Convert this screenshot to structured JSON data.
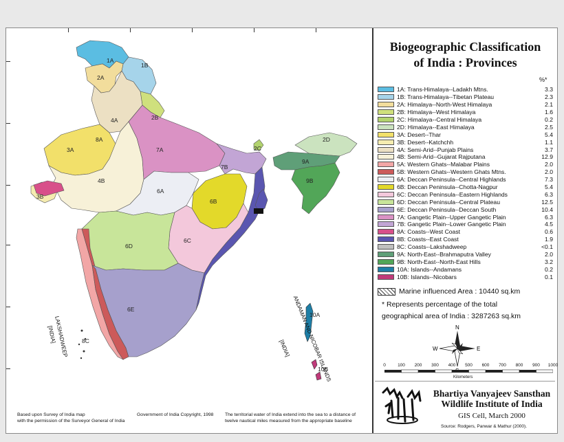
{
  "title": "Biogeographic Classification of India : Provinces",
  "title_lines": [
    "Biogeographic Classification",
    "of India : Provinces"
  ],
  "percent_header": "%*",
  "legend": [
    {
      "code": "1A",
      "label": "1A: Trans-Himalaya--Ladakh Mtns.",
      "value": "3.3",
      "color": "#5bbde2"
    },
    {
      "code": "1B",
      "label": "1B: Trans-Himalaya--Tibetan Plateau",
      "value": "2.3",
      "color": "#a6d4ea"
    },
    {
      "code": "2A",
      "label": "2A: Himalaya--North-West Himalaya",
      "value": "2.1",
      "color": "#f2dd9c"
    },
    {
      "code": "2B",
      "label": "2B: Himalaya--West Himalaya",
      "value": "1.6",
      "color": "#cfe07d"
    },
    {
      "code": "2C",
      "label": "2C: Himalaya--Central Himalaya",
      "value": "0.2",
      "color": "#b2d36e"
    },
    {
      "code": "2D",
      "label": "2D: Himalaya--East Himalaya",
      "value": "2.5",
      "color": "#cbe3bf"
    },
    {
      "code": "3A",
      "label": "3A: Desert--Thar",
      "value": "5.4",
      "color": "#f2e06a"
    },
    {
      "code": "3B",
      "label": "3B: Desert--Katchchh",
      "value": "1.1",
      "color": "#f5ecb0"
    },
    {
      "code": "4A",
      "label": "4A: Semi-Arid--Punjab Plains",
      "value": "3.7",
      "color": "#ece0c3"
    },
    {
      "code": "4B",
      "label": "4B: Semi-Arid--Gujarat Rajputana",
      "value": "12.9",
      "color": "#f7f1d8"
    },
    {
      "code": "5A",
      "label": "5A: Western Ghats--Malabar Plains",
      "value": "2.0",
      "color": "#f2a6a6"
    },
    {
      "code": "5B",
      "label": "5B: Western Ghats--Western Ghats Mtns.",
      "value": "2.0",
      "color": "#cc5a5a"
    },
    {
      "code": "6A",
      "label": "6A: Deccan Peninsula--Central Highlands",
      "value": "7.3",
      "color": "#eceef4"
    },
    {
      "code": "6B",
      "label": "6B: Deccan Peninsula--Chotta-Nagpur",
      "value": "5.4",
      "color": "#e3d92a"
    },
    {
      "code": "6C",
      "label": "6C: Deccan Peninsula--Eastern Highlands",
      "value": "6.3",
      "color": "#f3c8db"
    },
    {
      "code": "6D",
      "label": "6D: Deccan Peninsula--Central Plateau",
      "value": "12.5",
      "color": "#c8e59a"
    },
    {
      "code": "6E",
      "label": "6E: Deccan Peninsula--Deccan South",
      "value": "10.4",
      "color": "#a6a0cc"
    },
    {
      "code": "7A",
      "label": "7A: Gangetic Plain--Upper Gangetic Plain",
      "value": "6.3",
      "color": "#da92c4"
    },
    {
      "code": "7B",
      "label": "7B: Gangetic Plain--Lower Gangetic Plain",
      "value": "4.5",
      "color": "#c2a5d5"
    },
    {
      "code": "8A",
      "label": "8A: Coasts--West Coast",
      "value": "0.6",
      "color": "#d8508a"
    },
    {
      "code": "8B",
      "label": "8B: Coasts--East Coast",
      "value": "1.9",
      "color": "#5a56b0"
    },
    {
      "code": "8C",
      "label": "8C: Coasts--Lakshadweep",
      "value": "<0.1",
      "color": "#c0c0c0"
    },
    {
      "code": "9A",
      "label": "9A: North-East--Brahmaputra Valley",
      "value": "2.0",
      "color": "#5f9f78"
    },
    {
      "code": "9B",
      "label": "9B: North-East--North-East Hills",
      "value": "3.2",
      "color": "#52a658"
    },
    {
      "code": "10A",
      "label": "10A: Islands--Andamans",
      "value": "0.2",
      "color": "#1e7ea6"
    },
    {
      "code": "10B",
      "label": "10B: Islands--Nicobars",
      "value": "0.1",
      "color": "#c03a7a"
    }
  ],
  "marine_text": "Marine influenced Area : 10440 sq.km",
  "note_lines": [
    "* Represents percentage of the total",
    "geographical area of India : 3287263 sq.km"
  ],
  "compass": {
    "n": "N",
    "s": "S",
    "e": "E",
    "w": "W"
  },
  "scale": {
    "ticks": [
      "0",
      "100",
      "200",
      "300",
      "400",
      "500",
      "600",
      "700",
      "800",
      "900",
      "1000"
    ],
    "unit": "Kilometers"
  },
  "institute": {
    "name_lines": [
      "Bhartiya Vanyajeev Sansthan",
      "Wildlife Institute of India"
    ],
    "cell": "GIS Cell, March 2000",
    "source": "Source: Rodgers, Panwar & Mathur (2000)."
  },
  "footer": {
    "left": [
      "Based upon Survey of India map",
      "with the permission of the Surveyor General of India"
    ],
    "mid": "Government of India Copyright, 1998",
    "right": [
      "The territorial water of India extend into the sea to a distance of",
      "twelve nautical miles measured from the appropriate baseline"
    ]
  },
  "map_labels": {
    "lakshadweep": "LAKSHADWEEP",
    "lakshadweep_sub": "[INDIA]",
    "andaman": "ANDAMAN AND NICOBAR ISLANDS",
    "andaman_sub": "[INDIA]"
  },
  "regions": [
    "1A",
    "1B",
    "2A",
    "2B",
    "2C",
    "2D",
    "3A",
    "3B",
    "4A",
    "4B",
    "5A",
    "5B",
    "6A",
    "6B",
    "6C",
    "6D",
    "6E",
    "7A",
    "7B",
    "8A",
    "8B",
    "8C",
    "9A",
    "9B",
    "10A",
    "10B"
  ]
}
